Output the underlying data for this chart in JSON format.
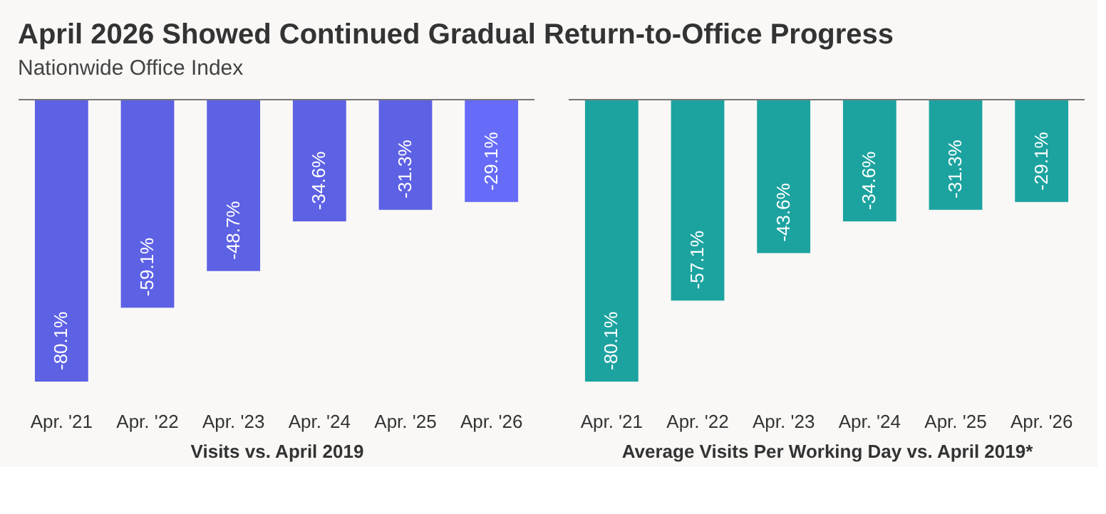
{
  "chart_data": [
    {
      "type": "bar",
      "title": "April 2026 Showed Continued Gradual Return-to-Office Progress",
      "subtitle": "Nationwide Office Index",
      "categories": [
        "Apr. '21",
        "Apr. '22",
        "Apr. '23",
        "Apr. '24",
        "Apr. '25",
        "Apr. '26"
      ],
      "values": [
        -80.1,
        -59.1,
        -48.7,
        -34.6,
        -31.3,
        -29.1
      ],
      "colors": [
        "#5d61e4",
        "#5d61e4",
        "#5d61e4",
        "#5d61e4",
        "#5d61e4",
        "#666bf8"
      ],
      "value_labels": [
        "-80.1%",
        "-59.1%",
        "-48.7%",
        "-34.6%",
        "-31.3%",
        "-29.1%"
      ],
      "xlabel": "Visits vs. April 2019",
      "tick_labels": "x"
    },
    {
      "type": "bar",
      "categories": [
        "Apr. '21",
        "Apr. '22",
        "Apr. '23",
        "Apr. '24",
        "Apr. '25",
        "Apr. '26"
      ],
      "values": [
        -80.1,
        -57.1,
        -43.6,
        -34.6,
        -31.3,
        -29.1
      ],
      "colors": [
        "#1ca3a0",
        "#1ca3a0",
        "#1ca3a0",
        "#1ca3a0",
        "#1ca3a0",
        "#1ca3a0"
      ],
      "value_labels": [
        "-80.1%",
        "-57.1%",
        "-43.6%",
        "-34.6%",
        "-31.3%",
        "-29.1%"
      ],
      "xlabel": "Average Visits Per Working Day vs. April 2019*",
      "tick_labels": "x"
    }
  ]
}
